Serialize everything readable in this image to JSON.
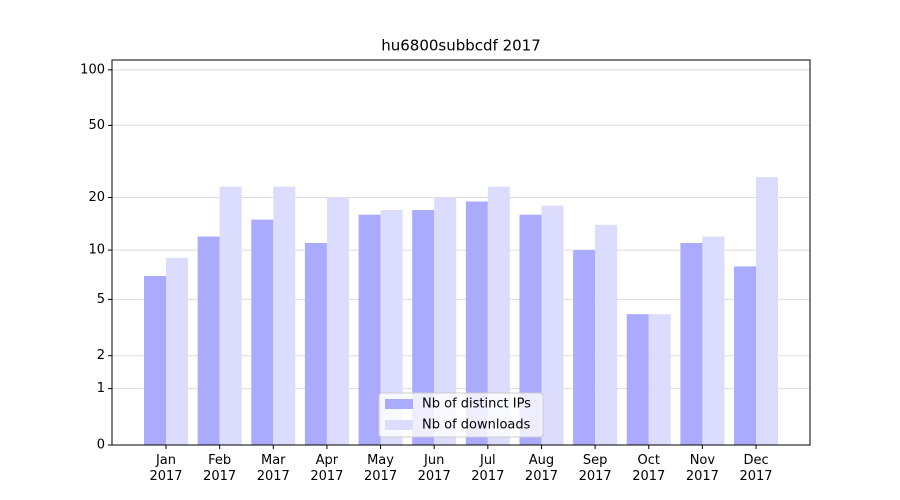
{
  "chart_data": {
    "type": "bar",
    "title": "hu6800subbcdf 2017",
    "categories": [
      "Jan\n2017",
      "Feb\n2017",
      "Mar\n2017",
      "Apr\n2017",
      "May\n2017",
      "Jun\n2017",
      "Jul\n2017",
      "Aug\n2017",
      "Sep\n2017",
      "Oct\n2017",
      "Nov\n2017",
      "Dec\n2017"
    ],
    "series": [
      {
        "name": "Nb of distinct IPs",
        "color": "#aaaaff",
        "values": [
          7,
          12,
          15,
          11,
          16,
          17,
          19,
          16,
          10,
          4,
          11,
          8
        ]
      },
      {
        "name": "Nb of downloads",
        "color": "#dcdcff",
        "values": [
          9,
          23,
          23,
          20,
          17,
          20,
          23,
          18,
          14,
          4,
          12,
          26
        ]
      }
    ],
    "yscale": "symlog",
    "ylim": [
      0,
      113
    ],
    "yticks": [
      0,
      1,
      2,
      5,
      10,
      20,
      50,
      100
    ],
    "grid": true,
    "legend": "lower center"
  }
}
